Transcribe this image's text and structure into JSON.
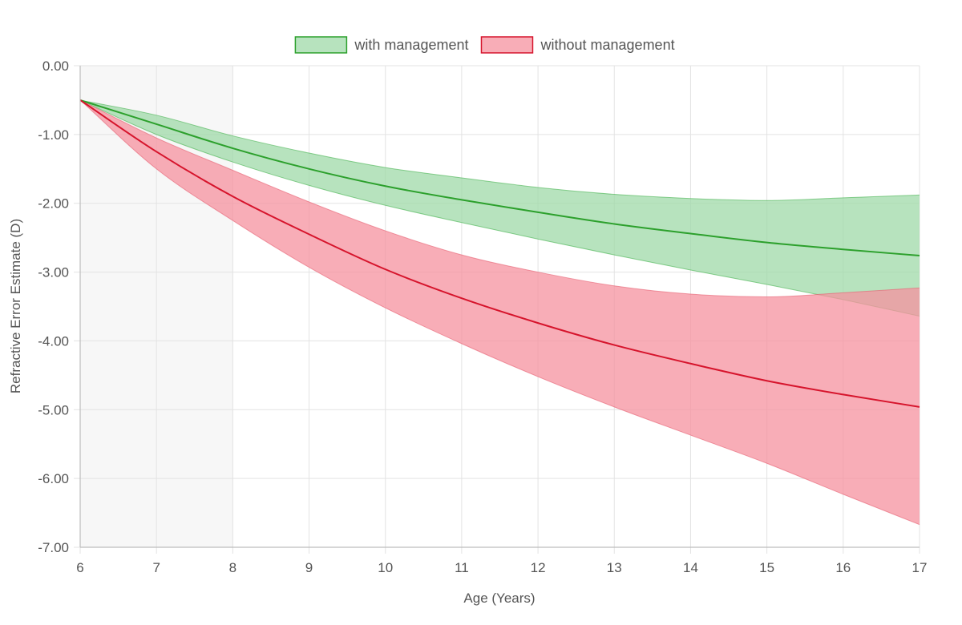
{
  "chart_data": {
    "type": "line",
    "xlabel": "Age (Years)",
    "ylabel": "Refractive Error Estimate (D)",
    "xlim": [
      6,
      17
    ],
    "ylim": [
      -7,
      0
    ],
    "x_ticks": [
      "6",
      "7",
      "8",
      "9",
      "10",
      "11",
      "12",
      "13",
      "14",
      "15",
      "16",
      "17"
    ],
    "y_ticks": [
      "0.00",
      "-1.00",
      "-2.00",
      "-3.00",
      "-4.00",
      "-5.00",
      "-6.00",
      "-7.00"
    ],
    "grid": true,
    "legend_position": "top-center",
    "highlight_region": {
      "x_from": 6,
      "x_to": 8,
      "color": "#f7f7f7"
    },
    "x": [
      6,
      7,
      8,
      9,
      10,
      11,
      12,
      13,
      14,
      15,
      16,
      17
    ],
    "series": [
      {
        "name": "with management",
        "line_color": "#2ca02c",
        "fill_color": "#9fd9a8",
        "border_color": "#45b34f",
        "values": [
          -0.5,
          -0.85,
          -1.2,
          -1.5,
          -1.75,
          -1.95,
          -2.13,
          -2.3,
          -2.44,
          -2.57,
          -2.67,
          -2.76
        ],
        "upper": [
          -0.5,
          -0.72,
          -1.02,
          -1.27,
          -1.48,
          -1.63,
          -1.77,
          -1.87,
          -1.93,
          -1.96,
          -1.92,
          -1.88
        ],
        "lower": [
          -0.5,
          -1.0,
          -1.4,
          -1.74,
          -2.03,
          -2.28,
          -2.52,
          -2.75,
          -2.97,
          -3.18,
          -3.4,
          -3.64
        ]
      },
      {
        "name": "without management",
        "line_color": "#d6142c",
        "fill_color": "#f6919f",
        "border_color": "#e65d70",
        "values": [
          -0.5,
          -1.25,
          -1.9,
          -2.45,
          -2.96,
          -3.38,
          -3.74,
          -4.06,
          -4.33,
          -4.58,
          -4.78,
          -4.96
        ],
        "upper": [
          -0.5,
          -1.05,
          -1.52,
          -1.98,
          -2.4,
          -2.75,
          -3.0,
          -3.2,
          -3.32,
          -3.36,
          -3.3,
          -3.23
        ],
        "lower": [
          -0.5,
          -1.5,
          -2.25,
          -2.93,
          -3.52,
          -4.04,
          -4.52,
          -4.96,
          -5.37,
          -5.78,
          -6.23,
          -6.67
        ]
      }
    ]
  }
}
